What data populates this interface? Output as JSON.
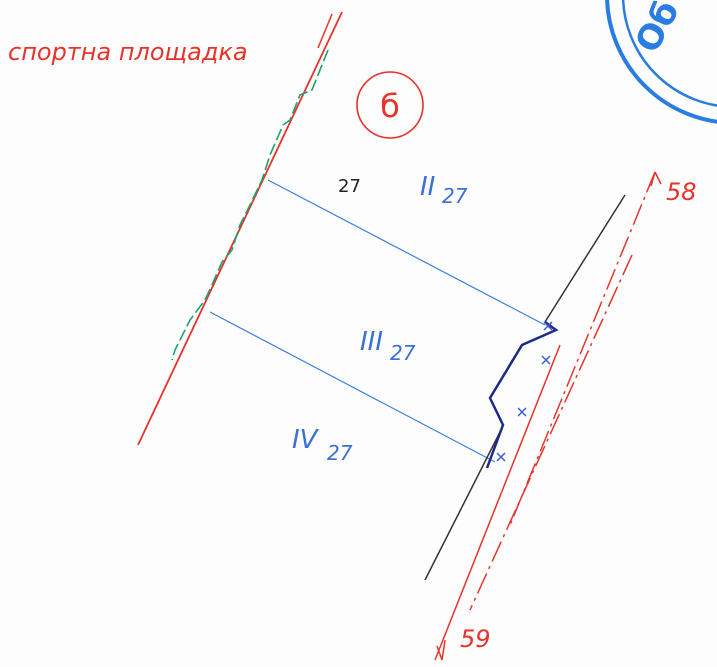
{
  "labels": {
    "area": "спортна площадка",
    "block": "б",
    "lot": "27",
    "parcels": [
      {
        "numeral": "II",
        "sub": "27"
      },
      {
        "numeral": "III",
        "sub": "27"
      },
      {
        "numeral": "IV",
        "sub": "27"
      }
    ],
    "street_north": "58",
    "street_south": "59",
    "stamp": "Об"
  }
}
